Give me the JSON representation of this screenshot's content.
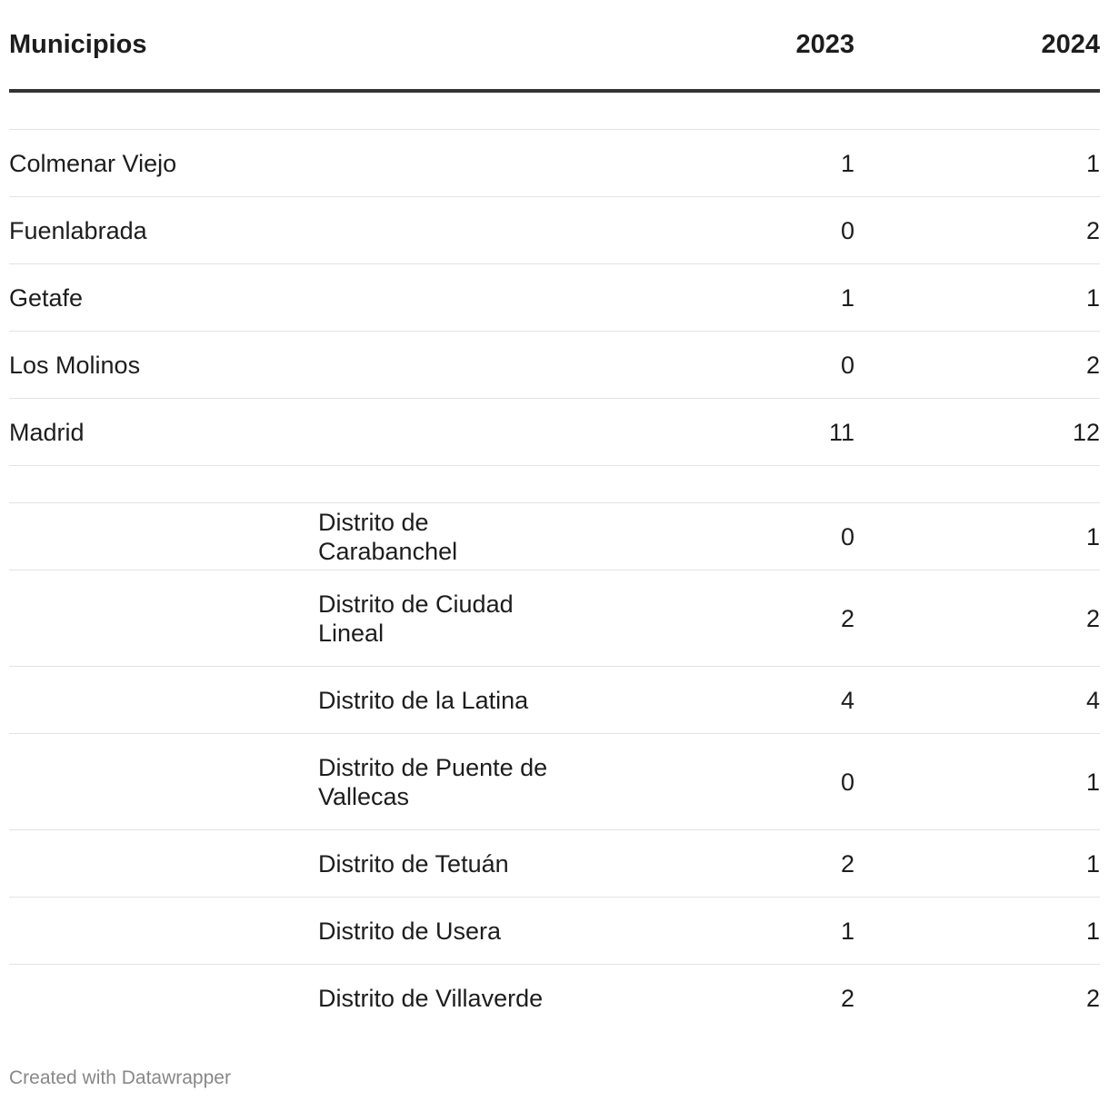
{
  "table": {
    "headers": {
      "municipios": "Municipios",
      "y2023": "2023",
      "y2024": "2024"
    },
    "municipios": [
      {
        "name": "Colmenar Viejo",
        "y2023": "1",
        "y2024": "1"
      },
      {
        "name": "Fuenlabrada",
        "y2023": "0",
        "y2024": "2"
      },
      {
        "name": "Getafe",
        "y2023": "1",
        "y2024": "1"
      },
      {
        "name": "Los Molinos",
        "y2023": "0",
        "y2024": "2"
      },
      {
        "name": "Madrid",
        "y2023": "11",
        "y2024": "12"
      }
    ],
    "distritos": [
      {
        "name": "Distrito de Carabanchel",
        "y2023": "0",
        "y2024": "1"
      },
      {
        "name": "Distrito de Ciudad Lineal",
        "y2023": "2",
        "y2024": "2"
      },
      {
        "name": "Distrito de la Latina",
        "y2023": "4",
        "y2024": "4"
      },
      {
        "name": "Distrito de Puente de Vallecas",
        "y2023": "0",
        "y2024": "1"
      },
      {
        "name": "Distrito de Tetuán",
        "y2023": "2",
        "y2024": "1"
      },
      {
        "name": "Distrito de Usera",
        "y2023": "1",
        "y2024": "1"
      },
      {
        "name": "Distrito de Villaverde",
        "y2023": "2",
        "y2024": "2"
      }
    ]
  },
  "chart_data": {
    "type": "table",
    "columns": [
      "Municipios",
      "",
      "2023",
      "2024"
    ],
    "rows": [
      {
        "municipio": "Colmenar Viejo",
        "distrito": "",
        "2023": 1,
        "2024": 1
      },
      {
        "municipio": "Fuenlabrada",
        "distrito": "",
        "2023": 0,
        "2024": 2
      },
      {
        "municipio": "Getafe",
        "distrito": "",
        "2023": 1,
        "2024": 1
      },
      {
        "municipio": "Los Molinos",
        "distrito": "",
        "2023": 0,
        "2024": 2
      },
      {
        "municipio": "Madrid",
        "distrito": "",
        "2023": 11,
        "2024": 12
      },
      {
        "municipio": "",
        "distrito": "Distrito de Carabanchel",
        "2023": 0,
        "2024": 1
      },
      {
        "municipio": "",
        "distrito": "Distrito de Ciudad Lineal",
        "2023": 2,
        "2024": 2
      },
      {
        "municipio": "",
        "distrito": "Distrito de la Latina",
        "2023": 4,
        "2024": 4
      },
      {
        "municipio": "",
        "distrito": "Distrito de Puente de Vallecas",
        "2023": 0,
        "2024": 1
      },
      {
        "municipio": "",
        "distrito": "Distrito de Tetuán",
        "2023": 2,
        "2024": 1
      },
      {
        "municipio": "",
        "distrito": "Distrito de Usera",
        "2023": 1,
        "2024": 1
      },
      {
        "municipio": "",
        "distrito": "Distrito de Villaverde",
        "2023": 2,
        "2024": 2
      }
    ]
  },
  "footer": {
    "credit": "Created with Datawrapper"
  }
}
